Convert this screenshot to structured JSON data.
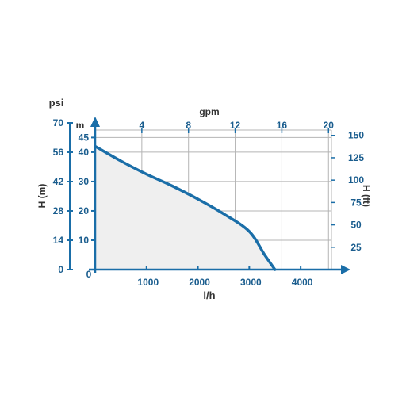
{
  "chart_data": {
    "type": "area",
    "x": [
      0,
      500,
      1000,
      1500,
      2000,
      2500,
      3000,
      3300,
      3500
    ],
    "values": [
      42,
      37,
      32.5,
      28.5,
      24,
      19,
      13,
      5,
      0
    ],
    "xlim": [
      0,
      4600
    ],
    "ylim": [
      0,
      47
    ],
    "x_ticks": [
      0,
      1000,
      2000,
      3000,
      4000
    ],
    "x_tick_labels": [
      "0",
      "1000",
      "2000",
      "3000",
      "4000"
    ],
    "xlabel": "l/h",
    "top_axis": {
      "label": "gpm",
      "ticks": [
        4,
        8,
        12,
        16,
        20
      ],
      "tick_labels": [
        "4",
        "8",
        "12",
        "16",
        "20"
      ]
    },
    "y_ticks": [
      10,
      20,
      30,
      40,
      45
    ],
    "y_tick_labels": [
      "10",
      "20",
      "30",
      "40",
      "45"
    ],
    "ylabel_unit": "m",
    "ylabel": "H (m)",
    "psi_axis": {
      "label": "psi",
      "ticks": [
        0,
        14,
        28,
        42,
        56,
        70
      ],
      "tick_labels": [
        "0",
        "14",
        "28",
        "42",
        "56",
        "70"
      ]
    },
    "ft_axis": {
      "label": "H (ft)",
      "ticks": [
        25,
        50,
        75,
        100,
        125,
        150
      ],
      "tick_labels": [
        "25",
        "50",
        "75",
        "100",
        "125",
        "150"
      ]
    },
    "grid": true,
    "colors": {
      "axis": "#1a6ea8",
      "curve": "#1a6ea8",
      "fill": "#efefef",
      "grid": "#b4b4b4",
      "label": "#1a5d8e"
    }
  }
}
